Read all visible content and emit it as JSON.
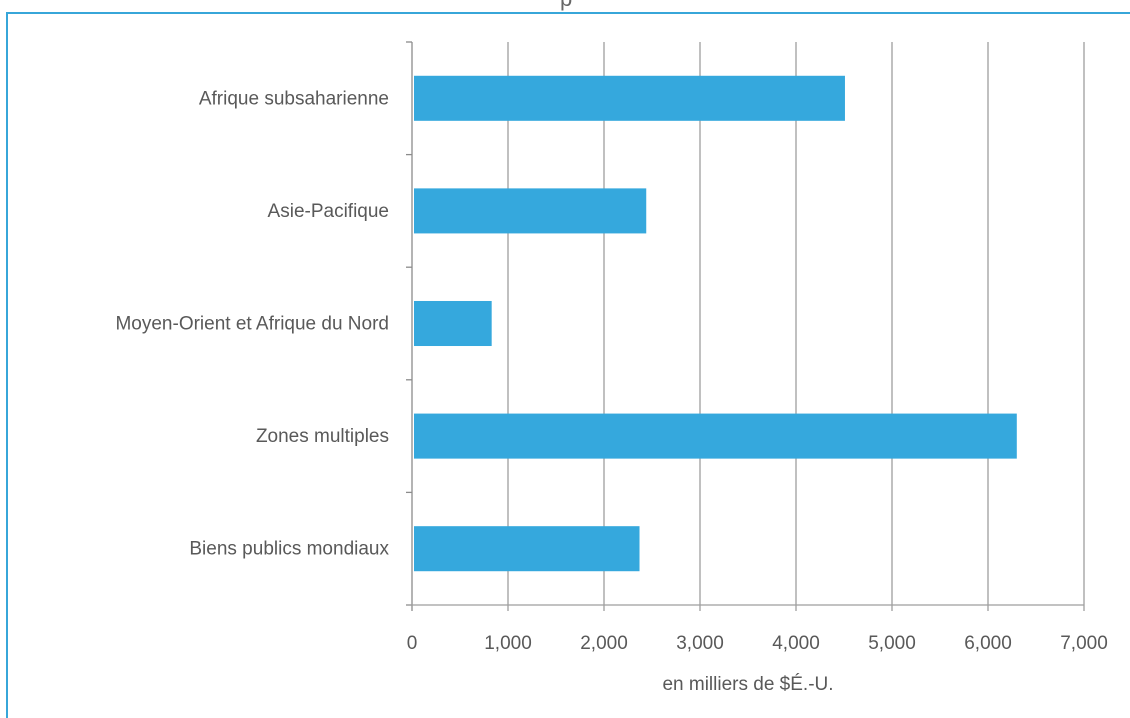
{
  "chart_data": {
    "type": "bar",
    "orientation": "horizontal",
    "title": "",
    "title_fragment": "p",
    "categories": [
      "Afrique subsaharienne",
      "Asie-Pacifique",
      "Moyen-Orient et Afrique du Nord",
      "Zones multiples",
      "Biens publics mondiaux"
    ],
    "values": [
      4510,
      2440,
      830,
      6300,
      2370
    ],
    "xlabel": "en milliers de $É.-U.",
    "ylabel": "",
    "xlim": [
      0,
      7000
    ],
    "x_ticks": [
      0,
      1000,
      2000,
      3000,
      4000,
      5000,
      6000,
      7000
    ],
    "x_tick_labels": [
      "0",
      "1,000",
      "2,000",
      "3,000",
      "4,000",
      "5,000",
      "6,000",
      "7,000"
    ],
    "grid": "vertical",
    "legend": "none",
    "colors": {
      "bar": "#35a8dd",
      "grid": "#9e9e9e",
      "axis": "#8c8c8c",
      "text": "#595959",
      "frame": "#37a6d9"
    }
  }
}
